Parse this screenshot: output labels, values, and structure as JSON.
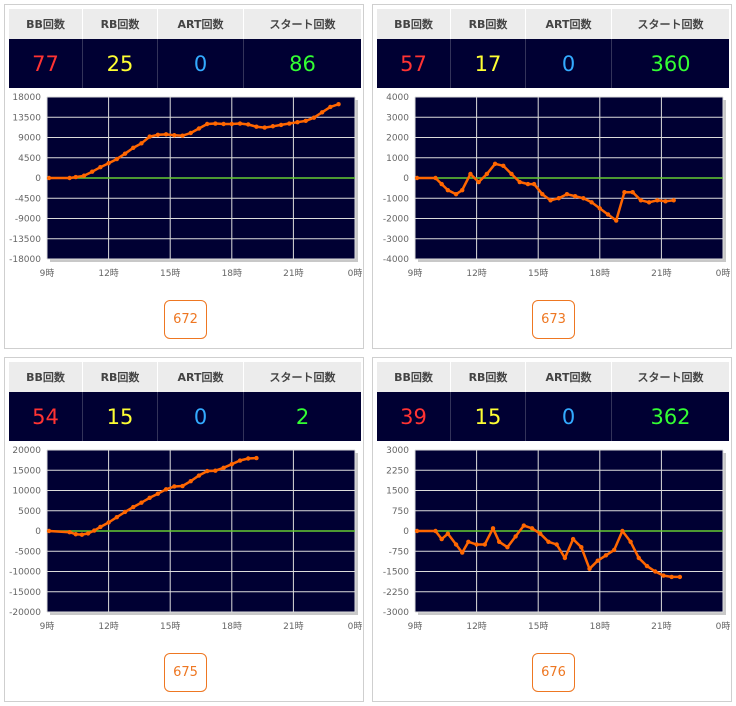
{
  "headers": {
    "bb": "BB回数",
    "rb": "RB回数",
    "art": "ART回数",
    "start": "スタート回数"
  },
  "colors": {
    "bb": "#ff3333",
    "rb": "#ffff33",
    "art": "#33aaff",
    "start": "#33ff33",
    "line": "#ff6600",
    "zero": "#66cc33",
    "plot_bg": "#000033"
  },
  "x_ticks": [
    "9時",
    "12時",
    "15時",
    "18時",
    "21時",
    "0時"
  ],
  "panels": [
    {
      "bb": "77",
      "rb": "25",
      "art": "0",
      "start": "86",
      "machine": "672",
      "chart_data": {
        "type": "line",
        "x_label_ticks": [
          "9時",
          "12時",
          "15時",
          "18時",
          "21時",
          "0時"
        ],
        "xlim": [
          9,
          24
        ],
        "ylim": [
          -18000,
          18000
        ],
        "y_ticks": [
          18000,
          13500,
          9000,
          4500,
          0,
          -4500,
          -9000,
          -13500,
          -18000
        ],
        "x": [
          9.1,
          10.1,
          10.4,
          10.8,
          11.2,
          11.6,
          12.0,
          12.4,
          12.8,
          13.2,
          13.6,
          14.0,
          14.4,
          14.8,
          15.2,
          15.6,
          16.0,
          16.4,
          16.8,
          17.2,
          17.6,
          18.0,
          18.4,
          18.8,
          19.2,
          19.6,
          20.0,
          20.4,
          20.8,
          21.2,
          21.6,
          22.0,
          22.4,
          22.8,
          23.2
        ],
        "y": [
          0,
          0,
          200,
          500,
          1400,
          2400,
          3300,
          4200,
          5400,
          6700,
          7700,
          9200,
          9600,
          9700,
          9500,
          9400,
          10000,
          11000,
          12000,
          12100,
          12000,
          12000,
          12100,
          11900,
          11400,
          11200,
          11500,
          11800,
          12100,
          12400,
          12700,
          13400,
          14600,
          15800,
          16400
        ]
      }
    },
    {
      "bb": "57",
      "rb": "17",
      "art": "0",
      "start": "360",
      "machine": "673",
      "chart_data": {
        "type": "line",
        "x_label_ticks": [
          "9時",
          "12時",
          "15時",
          "18時",
          "21時",
          "0時"
        ],
        "xlim": [
          9,
          24
        ],
        "ylim": [
          -4000,
          4000
        ],
        "y_ticks": [
          4000,
          3000,
          2000,
          1000,
          0,
          -1000,
          -2000,
          -3000,
          -4000
        ],
        "x": [
          9.1,
          10.0,
          10.3,
          10.6,
          11.0,
          11.3,
          11.7,
          12.1,
          12.5,
          12.9,
          13.3,
          13.7,
          14.1,
          14.5,
          14.8,
          15.2,
          15.6,
          16.0,
          16.4,
          16.8,
          17.2,
          17.6,
          18.0,
          18.4,
          18.8,
          19.2,
          19.6,
          20.0,
          20.4,
          20.8,
          21.2,
          21.6
        ],
        "y": [
          0,
          0,
          -300,
          -600,
          -800,
          -600,
          200,
          -200,
          200,
          700,
          600,
          200,
          -200,
          -300,
          -300,
          -800,
          -1100,
          -1000,
          -800,
          -900,
          -1000,
          -1200,
          -1500,
          -1800,
          -2100,
          -700,
          -700,
          -1100,
          -1200,
          -1100,
          -1150,
          -1100
        ]
      }
    },
    {
      "bb": "54",
      "rb": "15",
      "art": "0",
      "start": "2",
      "machine": "675",
      "chart_data": {
        "type": "line",
        "x_label_ticks": [
          "9時",
          "12時",
          "15時",
          "18時",
          "21時",
          "0時"
        ],
        "xlim": [
          9,
          24
        ],
        "ylim": [
          -20000,
          20000
        ],
        "y_ticks": [
          20000,
          15000,
          10000,
          5000,
          0,
          -5000,
          -10000,
          -15000,
          -20000
        ],
        "x": [
          9.1,
          10.1,
          10.4,
          10.7,
          11.0,
          11.3,
          11.6,
          12.0,
          12.4,
          12.8,
          13.2,
          13.6,
          14.0,
          14.4,
          14.8,
          15.2,
          15.6,
          16.0,
          16.4,
          16.8,
          17.2,
          17.6,
          18.0,
          18.4,
          18.8,
          19.2
        ],
        "y": [
          0,
          -300,
          -800,
          -900,
          -600,
          100,
          1000,
          2100,
          3400,
          4700,
          5900,
          7000,
          8200,
          9200,
          10300,
          11000,
          11100,
          12300,
          13700,
          14800,
          14900,
          15600,
          16500,
          17400,
          17900,
          18000
        ]
      }
    },
    {
      "bb": "39",
      "rb": "15",
      "art": "0",
      "start": "362",
      "machine": "676",
      "chart_data": {
        "type": "line",
        "x_label_ticks": [
          "9時",
          "12時",
          "15時",
          "18時",
          "21時",
          "0時"
        ],
        "xlim": [
          9,
          24
        ],
        "ylim": [
          -3000,
          3000
        ],
        "y_ticks": [
          3000,
          2250,
          1500,
          750,
          0,
          -750,
          -1500,
          -2250,
          -3000
        ],
        "x": [
          9.1,
          10.0,
          10.3,
          10.6,
          11.0,
          11.3,
          11.6,
          12.0,
          12.4,
          12.8,
          13.1,
          13.5,
          13.9,
          14.3,
          14.7,
          15.1,
          15.5,
          15.9,
          16.3,
          16.7,
          17.1,
          17.5,
          17.9,
          18.3,
          18.7,
          19.1,
          19.5,
          19.9,
          20.3,
          20.7,
          21.1,
          21.5,
          21.9
        ],
        "y": [
          0,
          0,
          -300,
          -100,
          -500,
          -800,
          -400,
          -500,
          -500,
          100,
          -400,
          -600,
          -200,
          200,
          100,
          -100,
          -400,
          -500,
          -1000,
          -300,
          -600,
          -1400,
          -1100,
          -900,
          -700,
          0,
          -400,
          -1000,
          -1300,
          -1500,
          -1650,
          -1700,
          -1700
        ]
      }
    }
  ]
}
